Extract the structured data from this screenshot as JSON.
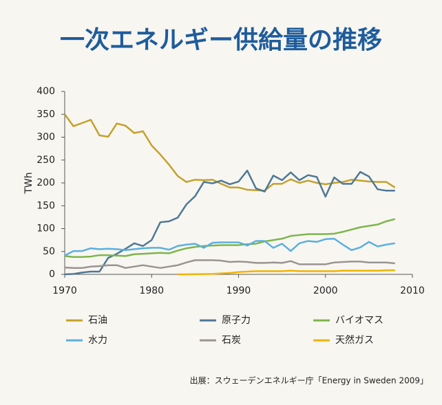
{
  "chart_data": {
    "type": "line",
    "title": "一次エネルギー供給量の推移",
    "y_label": "TWh",
    "source": "出展：スウェーデンエネルギー庁「Energy in Sweden 2009」",
    "x": [
      1970,
      1971,
      1972,
      1973,
      1974,
      1975,
      1976,
      1977,
      1978,
      1979,
      1980,
      1981,
      1982,
      1983,
      1984,
      1985,
      1986,
      1987,
      1988,
      1989,
      1990,
      1991,
      1992,
      1993,
      1994,
      1995,
      1996,
      1997,
      1998,
      1999,
      2000,
      2001,
      2002,
      2003,
      2004,
      2005,
      2006,
      2007,
      2008
    ],
    "xlim": [
      1970,
      2010
    ],
    "xticks": [
      1970,
      1980,
      1990,
      2000,
      2010
    ],
    "ylim": [
      0,
      400
    ],
    "yticks": [
      0,
      50,
      100,
      150,
      200,
      250,
      300,
      350,
      400
    ],
    "series": [
      {
        "name": "石油",
        "color": "#c4a12a",
        "values": [
          350,
          324,
          331,
          338,
          304,
          301,
          330,
          325,
          309,
          313,
          282,
          262,
          240,
          215,
          202,
          207,
          206,
          207,
          198,
          190,
          190,
          185,
          184,
          183,
          198,
          198,
          208,
          200,
          205,
          200,
          197,
          200,
          202,
          207,
          205,
          203,
          202,
          202,
          190
        ]
      },
      {
        "name": "原子力",
        "color": "#4d7896",
        "values": [
          0,
          1,
          4,
          6,
          6,
          36,
          45,
          56,
          68,
          62,
          75,
          114,
          116,
          124,
          153,
          171,
          202,
          199,
          205,
          197,
          203,
          227,
          188,
          181,
          216,
          206,
          223,
          206,
          217,
          213,
          170,
          212,
          198,
          198,
          224,
          214,
          186,
          183,
          183
        ]
      },
      {
        "name": "バイオマス",
        "color": "#7cb54b",
        "values": [
          40,
          38,
          38,
          39,
          42,
          42,
          41,
          40,
          44,
          45,
          46,
          47,
          46,
          52,
          57,
          60,
          62,
          63,
          64,
          64,
          64,
          66,
          67,
          72,
          75,
          78,
          84,
          86,
          88,
          88,
          88,
          89,
          93,
          98,
          103,
          106,
          109,
          116,
          121
        ]
      },
      {
        "name": "水力",
        "color": "#5aafe0",
        "values": [
          41,
          51,
          51,
          57,
          55,
          56,
          55,
          53,
          55,
          57,
          58,
          58,
          54,
          62,
          65,
          67,
          58,
          69,
          70,
          70,
          70,
          63,
          73,
          73,
          58,
          67,
          51,
          68,
          73,
          71,
          77,
          78,
          65,
          53,
          59,
          71,
          61,
          65,
          68
        ]
      },
      {
        "name": "石炭",
        "color": "#9a9393",
        "values": [
          15,
          14,
          14,
          17,
          18,
          20,
          20,
          14,
          17,
          20,
          17,
          14,
          17,
          20,
          26,
          31,
          31,
          31,
          30,
          27,
          28,
          27,
          25,
          25,
          26,
          25,
          29,
          22,
          22,
          22,
          22,
          26,
          27,
          28,
          28,
          26,
          26,
          26,
          24
        ]
      },
      {
        "name": "天然ガス",
        "color": "#f2b300",
        "values": [
          null,
          null,
          null,
          null,
          null,
          null,
          null,
          null,
          null,
          null,
          null,
          null,
          null,
          0,
          0,
          0.3,
          0.6,
          1,
          2,
          3,
          5,
          6,
          7,
          7,
          7,
          7,
          8,
          7,
          7,
          7,
          7,
          7,
          8,
          8,
          8,
          8,
          8,
          9,
          9
        ]
      }
    ]
  }
}
